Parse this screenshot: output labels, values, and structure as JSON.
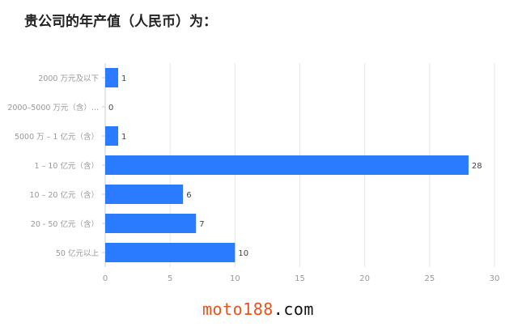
{
  "chart_data": {
    "type": "bar",
    "orientation": "horizontal",
    "title": "贵公司的年产值（人民币）为：",
    "categories": [
      "2000 万元及以下",
      "2000–5000 万元（含）...",
      "5000 万 – 1 亿元（含）",
      "1 – 10 亿元（含）",
      "10 – 20 亿元（含）",
      "20 - 50 亿元（含）",
      "50 亿元以上"
    ],
    "values": [
      1,
      0,
      1,
      28,
      6,
      7,
      10
    ],
    "xlim": [
      0,
      30
    ],
    "xticks": [
      0,
      5,
      10,
      15,
      20,
      25,
      30
    ],
    "grid": true,
    "bar_color": "#2a7bff"
  },
  "watermark": {
    "part1": "moto188",
    "part2": ".com"
  }
}
